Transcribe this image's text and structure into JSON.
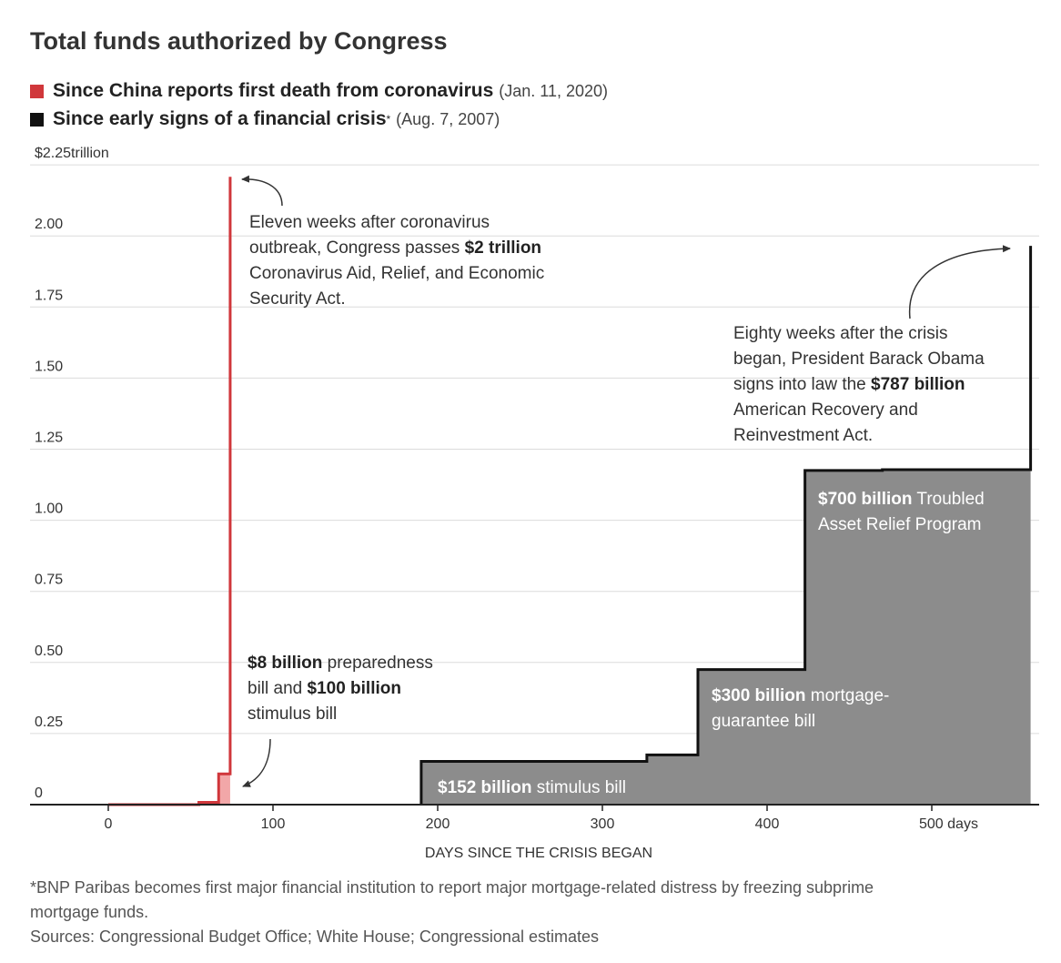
{
  "title": "Total funds authorized by Congress",
  "legend": [
    {
      "label": "Since China reports first death from coronavirus",
      "date": "(Jan. 11, 2020)",
      "color": "#d0373b",
      "marker": ""
    },
    {
      "label": "Since early signs of a financial crisis",
      "date": "(Aug. 7, 2007)",
      "color": "#111111",
      "marker": "*"
    }
  ],
  "annotations": {
    "covid_2t": {
      "line1": "Eleven weeks after coronavirus",
      "line2_pre": "outbreak, Congress passes ",
      "line2_bold": "$2 trillion",
      "line3": "Coronavirus Aid, Relief, and Economic",
      "line4": "Security Act."
    },
    "covid_small": {
      "bold1": "$8 billion",
      "text1": " preparedness",
      "text2": "bill and ",
      "bold2": "$100 billion",
      "text3": "stimulus bill"
    },
    "arra": {
      "line1": "Eighty weeks after the crisis",
      "line2": "began, President Barack Obama",
      "line3_pre": "signs into law the ",
      "line3_bold": "$787 billion",
      "line4": "American Recovery and",
      "line5": "Reinvestment Act."
    },
    "tarp": {
      "bold": "$700 billion",
      "text1": " Troubled",
      "text2": "Asset Relief Program"
    },
    "mortgage": {
      "bold": "$300 billion",
      "text1": " mortgage-",
      "text2": "guarantee bill"
    },
    "stimulus": {
      "bold": "$152 billion",
      "text1": " stimulus bill"
    }
  },
  "footnote": {
    "line1": "*BNP Paribas becomes first major financial institution to report major mortgage-related distress by freezing subprime",
    "line2": "mortgage funds.",
    "sources": "Sources: Congressional Budget Office; White House; Congressional estimates"
  },
  "chart_data": {
    "type": "area",
    "xlabel": "DAYS SINCE THE CRISIS BEGAN",
    "ylabel": "",
    "x_ticks": [
      {
        "value": 0,
        "label": "0"
      },
      {
        "value": 100,
        "label": "100"
      },
      {
        "value": 200,
        "label": "200"
      },
      {
        "value": 300,
        "label": "300"
      },
      {
        "value": 400,
        "label": "400"
      },
      {
        "value": 500,
        "label": "500 days"
      }
    ],
    "y_ticks": [
      {
        "value": 0,
        "label": "0"
      },
      {
        "value": 0.25,
        "label": "0.25"
      },
      {
        "value": 0.5,
        "label": "0.50"
      },
      {
        "value": 0.75,
        "label": "0.75"
      },
      {
        "value": 1.0,
        "label": "1.00"
      },
      {
        "value": 1.25,
        "label": "1.25"
      },
      {
        "value": 1.5,
        "label": "1.50"
      },
      {
        "value": 1.75,
        "label": "1.75"
      },
      {
        "value": 2.0,
        "label": "2.00"
      },
      {
        "value": 2.25,
        "label": "$2.25trillion"
      }
    ],
    "xlim": [
      -45,
      560
    ],
    "ylim": [
      0,
      2.25
    ],
    "grid": true,
    "series": [
      {
        "name": "Since China reports first death from coronavirus",
        "color": "#d0373b",
        "fill": "#f2a7a8",
        "points": [
          [
            0,
            0
          ],
          [
            55,
            0
          ],
          [
            55,
            0.008
          ],
          [
            67,
            0.008
          ],
          [
            67,
            0.108
          ],
          [
            74,
            0.108
          ],
          [
            74,
            2.208
          ]
        ]
      },
      {
        "name": "Since early signs of a financial crisis",
        "color": "#111111",
        "fill": "#8c8c8c",
        "points": [
          [
            190,
            0
          ],
          [
            190,
            0.152
          ],
          [
            327,
            0.152
          ],
          [
            327,
            0.175
          ],
          [
            358,
            0.175
          ],
          [
            358,
            0.475
          ],
          [
            423,
            0.475
          ],
          [
            423,
            1.175
          ],
          [
            470,
            1.175
          ],
          [
            470,
            1.178
          ],
          [
            560,
            1.178
          ],
          [
            560,
            1.965
          ]
        ]
      }
    ]
  }
}
